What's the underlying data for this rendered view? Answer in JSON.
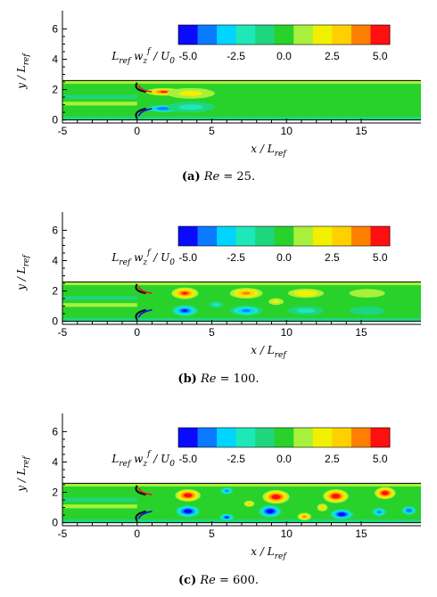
{
  "chart_data": [
    {
      "type": "heatmap",
      "panel": "a",
      "xlabel": "x / L_ref",
      "ylabel": "y / L_ref",
      "xticks": [
        "-5",
        "0",
        "5",
        "10",
        "15"
      ],
      "yticks": [
        "0",
        "2",
        "4",
        "6"
      ],
      "xlim": [
        -5,
        19
      ],
      "ylim": [
        -0.2,
        7.2
      ],
      "channel": [
        0,
        2.6
      ],
      "colorbar": {
        "label": "L_ref w_z^f / U_0",
        "ticks": [
          "-5.0",
          "-2.5",
          "0.0",
          "2.5",
          "5.0"
        ],
        "levels": [
          -5.5,
          -4.5,
          -3.5,
          -2.5,
          -1.5,
          -0.5,
          0.5,
          1.5,
          2.5,
          3.5,
          4.5,
          5.5
        ],
        "colors": [
          "#0a0aff",
          "#0a7bff",
          "#00d5ff",
          "#1fe8b8",
          "#1ed67e",
          "#28d22a",
          "#a8f03a",
          "#f0f000",
          "#ffd000",
          "#ff8000",
          "#ff1010"
        ]
      },
      "caption": {
        "letter": "(a)",
        "re_label": "Re",
        "re_value": "= 25."
      }
    },
    {
      "type": "heatmap",
      "panel": "b",
      "xlabel": "x / L_ref",
      "ylabel": "y / L_ref",
      "xticks": [
        "-5",
        "0",
        "5",
        "10",
        "15"
      ],
      "yticks": [
        "0",
        "2",
        "4",
        "6"
      ],
      "xlim": [
        -5,
        19
      ],
      "ylim": [
        -0.2,
        7.2
      ],
      "channel": [
        0,
        2.6
      ],
      "colorbar": {
        "label": "L_ref w_z^f / U_0",
        "ticks": [
          "-5.0",
          "-2.5",
          "0.0",
          "2.5",
          "5.0"
        ]
      },
      "caption": {
        "letter": "(b)",
        "re_label": "Re",
        "re_value": "= 100."
      }
    },
    {
      "type": "heatmap",
      "panel": "c",
      "xlabel": "x / L_ref",
      "ylabel": "y / L_ref",
      "xticks": [
        "-5",
        "0",
        "5",
        "10",
        "15"
      ],
      "yticks": [
        "0",
        "2",
        "4",
        "6"
      ],
      "xlim": [
        -5,
        19
      ],
      "ylim": [
        -0.2,
        7.2
      ],
      "channel": [
        0,
        2.6
      ],
      "colorbar": {
        "label": "L_ref w_z^f / U_0",
        "ticks": [
          "-5.0",
          "-2.5",
          "0.0",
          "2.5",
          "5.0"
        ]
      },
      "caption": {
        "letter": "(c)",
        "re_label": "Re",
        "re_value": "= 600."
      }
    }
  ],
  "vortices": {
    "a": [
      {
        "x": 1.8,
        "y": 1.85,
        "rx": 1.2,
        "ry": 0.25,
        "v": 4.5
      },
      {
        "x": 3.6,
        "y": 1.75,
        "rx": 1.6,
        "ry": 0.35,
        "v": 2.0
      },
      {
        "x": 1.8,
        "y": 0.75,
        "rx": 1.2,
        "ry": 0.25,
        "v": -4.5
      },
      {
        "x": 3.6,
        "y": 0.85,
        "rx": 1.6,
        "ry": 0.35,
        "v": -2.0
      }
    ],
    "b": [
      {
        "x": 3.2,
        "y": 1.85,
        "rx": 0.9,
        "ry": 0.38,
        "v": 5.0
      },
      {
        "x": 3.2,
        "y": 0.7,
        "rx": 0.9,
        "ry": 0.38,
        "v": -5.0
      },
      {
        "x": 7.3,
        "y": 1.85,
        "rx": 1.1,
        "ry": 0.35,
        "v": 3.8
      },
      {
        "x": 7.3,
        "y": 0.7,
        "rx": 1.1,
        "ry": 0.35,
        "v": -3.6
      },
      {
        "x": 11.3,
        "y": 1.85,
        "rx": 1.2,
        "ry": 0.3,
        "v": 2.2
      },
      {
        "x": 11.3,
        "y": 0.7,
        "rx": 1.2,
        "ry": 0.3,
        "v": -2.0
      },
      {
        "x": 15.4,
        "y": 1.85,
        "rx": 1.2,
        "ry": 0.28,
        "v": 1.4
      },
      {
        "x": 15.4,
        "y": 0.7,
        "rx": 1.2,
        "ry": 0.28,
        "v": -1.2
      },
      {
        "x": 5.3,
        "y": 1.1,
        "rx": 0.5,
        "ry": 0.22,
        "v": -2.0
      },
      {
        "x": 9.3,
        "y": 1.3,
        "rx": 0.5,
        "ry": 0.22,
        "v": 2.0
      }
    ],
    "c": [
      {
        "x": 3.4,
        "y": 1.8,
        "rx": 0.85,
        "ry": 0.4,
        "v": 5.2
      },
      {
        "x": 3.4,
        "y": 0.75,
        "rx": 0.85,
        "ry": 0.4,
        "v": -5.2
      },
      {
        "x": 6.0,
        "y": 0.35,
        "rx": 0.5,
        "ry": 0.25,
        "v": -5.0
      },
      {
        "x": 6.0,
        "y": 2.1,
        "rx": 0.45,
        "ry": 0.25,
        "v": -4.0
      },
      {
        "x": 9.3,
        "y": 1.7,
        "rx": 0.9,
        "ry": 0.45,
        "v": 5.2
      },
      {
        "x": 8.9,
        "y": 0.75,
        "rx": 0.8,
        "ry": 0.42,
        "v": -5.2
      },
      {
        "x": 11.2,
        "y": 0.4,
        "rx": 0.45,
        "ry": 0.25,
        "v": 4.0
      },
      {
        "x": 13.3,
        "y": 1.75,
        "rx": 0.85,
        "ry": 0.45,
        "v": 5.2
      },
      {
        "x": 13.7,
        "y": 0.55,
        "rx": 0.8,
        "ry": 0.35,
        "v": -5.2
      },
      {
        "x": 16.6,
        "y": 1.95,
        "rx": 0.7,
        "ry": 0.4,
        "v": 5.2
      },
      {
        "x": 16.2,
        "y": 0.7,
        "rx": 0.5,
        "ry": 0.3,
        "v": -4.0
      },
      {
        "x": 18.2,
        "y": 0.8,
        "rx": 0.5,
        "ry": 0.3,
        "v": -4.5
      },
      {
        "x": 12.4,
        "y": 1.0,
        "rx": 0.35,
        "ry": 0.25,
        "v": 3.0
      },
      {
        "x": 7.5,
        "y": 1.25,
        "rx": 0.35,
        "ry": 0.2,
        "v": 2.5
      }
    ]
  }
}
